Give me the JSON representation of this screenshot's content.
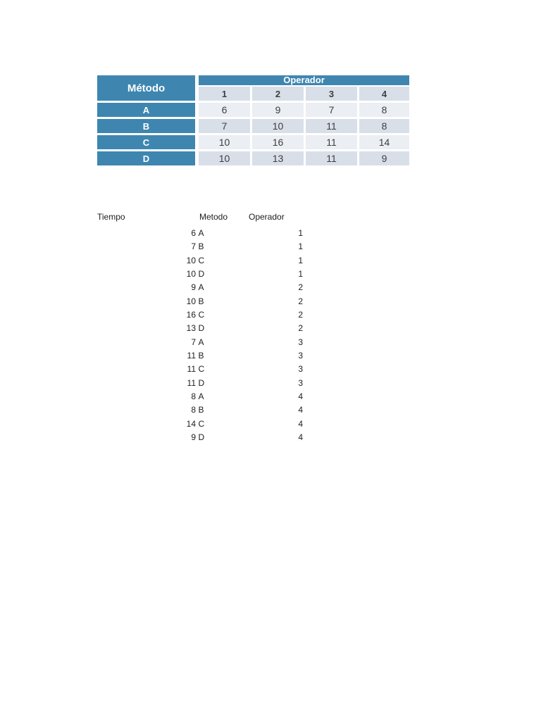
{
  "pivot_table": {
    "corner_label": "Método",
    "group_label": "Operador",
    "column_headers": [
      "1",
      "2",
      "3",
      "4"
    ],
    "rows": [
      {
        "label": "A",
        "values": [
          "6",
          "9",
          "7",
          "8"
        ]
      },
      {
        "label": "B",
        "values": [
          "7",
          "10",
          "11",
          "8"
        ]
      },
      {
        "label": "C",
        "values": [
          "10",
          "16",
          "11",
          "14"
        ]
      },
      {
        "label": "D",
        "values": [
          "10",
          "13",
          "11",
          "9"
        ]
      }
    ],
    "colors": {
      "header_blue": "#3E86B0",
      "header_text": "#FFFFFF",
      "row_light": "#EBEEF3",
      "row_dark": "#D9DFE9",
      "cell_text": "#3D3D3D"
    }
  },
  "data_list": {
    "headers": {
      "tiempo": "Tiempo",
      "metodo": "Metodo",
      "operador": "Operador"
    },
    "colors": {
      "text": "#1C1C1C"
    },
    "rows": [
      {
        "tiempo": "6",
        "metodo": "A",
        "operador": "1"
      },
      {
        "tiempo": "7",
        "metodo": "B",
        "operador": "1"
      },
      {
        "tiempo": "10",
        "metodo": "C",
        "operador": "1"
      },
      {
        "tiempo": "10",
        "metodo": "D",
        "operador": "1"
      },
      {
        "tiempo": "9",
        "metodo": "A",
        "operador": "2"
      },
      {
        "tiempo": "10",
        "metodo": "B",
        "operador": "2"
      },
      {
        "tiempo": "16",
        "metodo": "C",
        "operador": "2"
      },
      {
        "tiempo": "13",
        "metodo": "D",
        "operador": "2"
      },
      {
        "tiempo": "7",
        "metodo": "A",
        "operador": "3"
      },
      {
        "tiempo": "11",
        "metodo": "B",
        "operador": "3"
      },
      {
        "tiempo": "11",
        "metodo": "C",
        "operador": "3"
      },
      {
        "tiempo": "11",
        "metodo": "D",
        "operador": "3"
      },
      {
        "tiempo": "8",
        "metodo": "A",
        "operador": "4"
      },
      {
        "tiempo": "8",
        "metodo": "B",
        "operador": "4"
      },
      {
        "tiempo": "14",
        "metodo": "C",
        "operador": "4"
      },
      {
        "tiempo": "9",
        "metodo": "D",
        "operador": "4"
      }
    ]
  }
}
